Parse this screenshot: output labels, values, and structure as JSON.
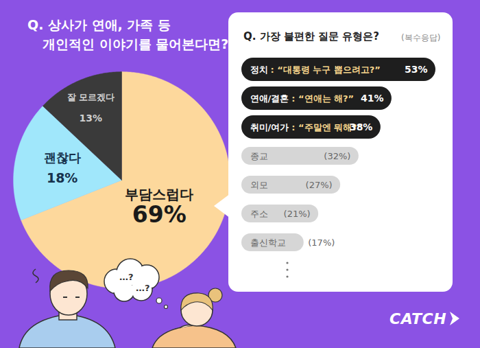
{
  "chart_data": [
    {
      "type": "pie",
      "title": [
        "Q. 상사가 연애, 가족 등",
        "개인적인 이야기를 물어본다면?"
      ],
      "categories": [
        "부담스럽다",
        "괜찮다",
        "잘 모르겠다"
      ],
      "values": [
        69,
        18,
        13
      ],
      "value_labels": [
        "69%",
        "18%",
        "13%"
      ],
      "colors": [
        "#fdd89c",
        "#a0e7fb",
        "#3a3a3a"
      ],
      "data_labels": true
    },
    {
      "type": "bar",
      "orientation": "horizontal",
      "title": "Q. 가장 불편한 질문 유형은?",
      "subtitle": "(복수응답)",
      "categories": [
        "정치",
        "연애/결혼",
        "취미/여가",
        "종교",
        "외모",
        "주소",
        "출신학교"
      ],
      "quotes": [
        ": “대통령 누구 뽑으려고?”",
        ": “연애는 해?”",
        ": “주말엔 뭐해?”",
        null,
        null,
        null,
        null
      ],
      "values": [
        53,
        41,
        38,
        32,
        27,
        21,
        17
      ],
      "value_labels": [
        "53%",
        "41%",
        "38%",
        "(32%)",
        "(27%)",
        "(21%)",
        "(17%)"
      ],
      "colors": [
        "#1e1e1e",
        "#1e1e1e",
        "#1e1e1e",
        "#d6d6d6",
        "#d6d6d6",
        "#d6d6d6",
        "#d6d6d6"
      ],
      "data_labels": true,
      "tick_labels": false
    }
  ],
  "thought_bubble": [
    "…?",
    "…?"
  ],
  "logo": "CATCH"
}
